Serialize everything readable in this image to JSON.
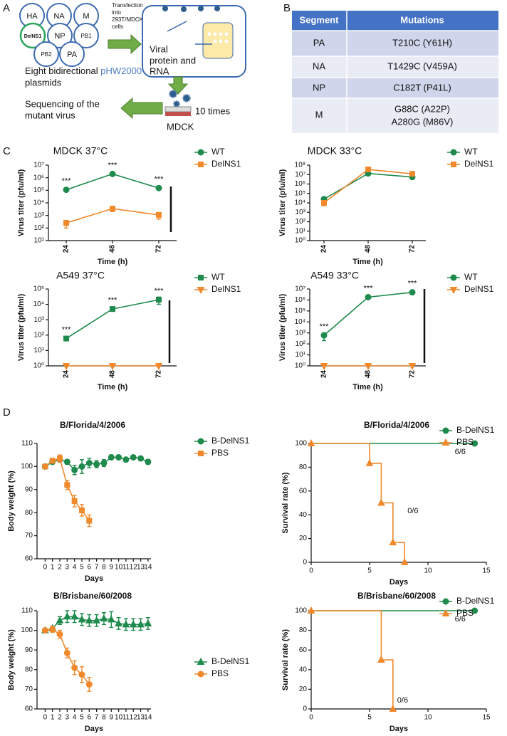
{
  "panel_a": {
    "label": "A",
    "segments": [
      "HA",
      "NA",
      "M",
      "DelNS1",
      "NP",
      "PB1",
      "PB2",
      "PA"
    ],
    "transfection": [
      "Transfection",
      "into",
      "293T/MDCK",
      "cells"
    ],
    "viral_product": [
      "Viral",
      "protein and",
      "RNA"
    ],
    "plasmids": [
      "Eight bidirectional",
      "pHW2000",
      "plasmids"
    ],
    "sequencing": [
      "Sequencing of the",
      "mutant virus"
    ],
    "passage": "10 times",
    "cell": "MDCK"
  },
  "panel_b": {
    "label": "B",
    "header": [
      "Segment",
      "Mutations"
    ],
    "rows": [
      {
        "segment": "PA",
        "mutations": [
          "T210C (Y61H)"
        ]
      },
      {
        "segment": "NA",
        "mutations": [
          "T1429C (V459A)"
        ]
      },
      {
        "segment": "NP",
        "mutations": [
          "C182T (P41L)"
        ]
      },
      {
        "segment": "M",
        "mutations": [
          "G88C (A22P)",
          "A280G  (M86V)"
        ]
      }
    ]
  },
  "panel_c_label": "C",
  "panel_d_label": "D",
  "chart_data": [
    {
      "type": "line",
      "title": "MDCK 37°C",
      "x_label": "Time (h)",
      "y_label": "Virus titer (pfu/ml)",
      "log_scale": true,
      "categories": [
        "24",
        "48",
        "72"
      ],
      "ylim": [
        10,
        10000000
      ],
      "yticks": [
        {
          "value": 10,
          "label": "10¹"
        },
        {
          "value": 100,
          "label": "10²"
        },
        {
          "value": 1000,
          "label": "10³"
        },
        {
          "value": 10000,
          "label": "10⁴"
        },
        {
          "value": 100000,
          "label": "10⁵"
        },
        {
          "value": 1000000,
          "label": "10⁶"
        },
        {
          "value": 10000000,
          "label": "10⁷"
        }
      ],
      "series": [
        {
          "name": "WT",
          "color": "#1e8a4c",
          "marker": "circle",
          "values": [
            110000,
            2000000,
            150000
          ],
          "errors": [
            20000,
            300000,
            30000
          ],
          "annotations": [
            "***",
            "***",
            "***"
          ]
        },
        {
          "name": "DelNS1",
          "color": "#f0892c",
          "marker": "square",
          "values": [
            250,
            3500,
            1100
          ],
          "errors": [
            150,
            1500,
            600
          ]
        }
      ]
    },
    {
      "type": "line",
      "title": "MDCK 33°C",
      "x_label": "Time (h)",
      "y_label": "Virus titer (pfu/ml)",
      "log_scale": true,
      "categories": [
        "24",
        "48",
        "72"
      ],
      "ylim": [
        1,
        100000000
      ],
      "yticks": [
        {
          "value": 1,
          "label": "10⁰"
        },
        {
          "value": 10,
          "label": "10¹"
        },
        {
          "value": 100,
          "label": "10²"
        },
        {
          "value": 1000,
          "label": "10³"
        },
        {
          "value": 10000,
          "label": "10⁴"
        },
        {
          "value": 100000,
          "label": "10⁵"
        },
        {
          "value": 1000000,
          "label": "10⁶"
        },
        {
          "value": 10000000,
          "label": "10⁷"
        },
        {
          "value": 100000000,
          "label": "10⁸"
        }
      ],
      "series": [
        {
          "name": "WT",
          "color": "#1e8a4c",
          "marker": "circle",
          "values": [
            25000,
            13000000,
            5500000
          ]
        },
        {
          "name": "DelNS1",
          "color": "#f0892c",
          "marker": "square",
          "values": [
            10000,
            35000000,
            12000000
          ],
          "errors": [
            5000,
            8000000,
            2000000
          ]
        }
      ]
    },
    {
      "type": "line",
      "title": "A549 37°C",
      "x_label": "Time (h)",
      "y_label": "Virus titer (pfu/ml)",
      "log_scale": true,
      "categories": [
        "24",
        "48",
        "72"
      ],
      "ylim": [
        1,
        100000
      ],
      "yticks": [
        {
          "value": 1,
          "label": "10⁰"
        },
        {
          "value": 10,
          "label": "10¹"
        },
        {
          "value": 100,
          "label": "10²"
        },
        {
          "value": 1000,
          "label": "10³"
        },
        {
          "value": 10000,
          "label": "10⁴"
        },
        {
          "value": 100000,
          "label": "10⁵"
        }
      ],
      "series": [
        {
          "name": "WT",
          "color": "#1e8a4c",
          "marker": "square",
          "values": [
            60,
            5000,
            20000
          ],
          "errors": [
            10,
            1500,
            10000
          ],
          "annotations": [
            "***",
            "***",
            "***"
          ]
        },
        {
          "name": "DelNS1",
          "color": "#f0892c",
          "marker": "triangle-down",
          "values": [
            1,
            1,
            1
          ]
        }
      ]
    },
    {
      "type": "line",
      "title": "A549 33°C",
      "x_label": "Time (h)",
      "y_label": "Virus titer (pfu/ml)",
      "log_scale": true,
      "categories": [
        "24",
        "48",
        "72"
      ],
      "ylim": [
        1,
        10000000
      ],
      "yticks": [
        {
          "value": 1,
          "label": "10⁰"
        },
        {
          "value": 10,
          "label": "10¹"
        },
        {
          "value": 100,
          "label": "10²"
        },
        {
          "value": 1000,
          "label": "10³"
        },
        {
          "value": 10000,
          "label": "10⁴"
        },
        {
          "value": 100000,
          "label": "10⁵"
        },
        {
          "value": 1000000,
          "label": "10⁶"
        },
        {
          "value": 10000000,
          "label": "10⁷"
        }
      ],
      "series": [
        {
          "name": "WT",
          "color": "#1e8a4c",
          "marker": "circle",
          "values": [
            600,
            1800000,
            5000000
          ],
          "errors": [
            400,
            200000,
            400000
          ],
          "annotations": [
            "***",
            "***",
            "***"
          ]
        },
        {
          "name": "DelNS1",
          "color": "#f0892c",
          "marker": "triangle-down",
          "values": [
            1,
            1,
            1
          ]
        }
      ]
    },
    {
      "type": "line",
      "title": "B/Florida/4/2006",
      "x_label": "Days",
      "y_label": "Body weight (%)",
      "x": [
        0,
        1,
        2,
        3,
        4,
        5,
        6,
        7,
        8,
        9,
        10,
        11,
        12,
        13,
        14
      ],
      "xlim": [
        -1.1,
        14.4
      ],
      "xticks": [
        0,
        1,
        2,
        3,
        4,
        5,
        6,
        7,
        8,
        9,
        10,
        11,
        12,
        13,
        14
      ],
      "ylim": [
        60,
        110
      ],
      "yticks": [
        60,
        70,
        80,
        90,
        100,
        110
      ],
      "series": [
        {
          "name": "B-DelNS1",
          "color": "#1e8a4c",
          "marker": "circle",
          "values": [
            100,
            102,
            103,
            102,
            98.5,
            100,
            101.5,
            101,
            101.5,
            104,
            104,
            103,
            104,
            103.5,
            102
          ],
          "errors": [
            0.5,
            0.8,
            1,
            1,
            2,
            3,
            2,
            1.5,
            1.5,
            1,
            0.5,
            0.5,
            0.5,
            0.5,
            1
          ]
        },
        {
          "name": "PBS",
          "color": "#f0892c",
          "marker": "square",
          "values": [
            100,
            102.5,
            103.5,
            92,
            85,
            81,
            76.5,
            null,
            null,
            null,
            null,
            null,
            null,
            null,
            null
          ],
          "errors": [
            0.5,
            1,
            1.5,
            2,
            2.5,
            2.5,
            2.5,
            null,
            null,
            null,
            null,
            null,
            null,
            null,
            null
          ]
        }
      ]
    },
    {
      "type": "step",
      "title": "B/Florida/4/2006",
      "x_label": "Days",
      "y_label": "Survival rate (%)",
      "xlim": [
        0,
        15
      ],
      "xticks": [
        0,
        5,
        10,
        15
      ],
      "ylim": [
        0,
        100
      ],
      "yticks": [
        0,
        20,
        40,
        60,
        80,
        100
      ],
      "series": [
        {
          "name": "B-DelNS1",
          "color": "#1e8a4c",
          "marker": "circle",
          "markers": "last",
          "x": [
            0,
            14
          ],
          "values": [
            100,
            100
          ],
          "end_label": "6/6"
        },
        {
          "name": "PBS",
          "color": "#f0892c",
          "marker": "triangle-up",
          "markers": "all",
          "x": [
            0,
            5,
            6,
            7,
            8
          ],
          "values": [
            100,
            83.3,
            50,
            16.7,
            0
          ],
          "end_label": "0/6"
        }
      ]
    },
    {
      "type": "line",
      "title": "B/Brisbane/60/2008",
      "x_label": "Days",
      "y_label": "Body weight (%)",
      "x": [
        0,
        1,
        2,
        3,
        4,
        5,
        6,
        7,
        8,
        9,
        10,
        11,
        12,
        13,
        14
      ],
      "xlim": [
        -1.1,
        14.4
      ],
      "xticks": [
        0,
        1,
        2,
        3,
        4,
        5,
        6,
        7,
        8,
        9,
        10,
        11,
        12,
        13,
        14
      ],
      "ylim": [
        60,
        110
      ],
      "yticks": [
        60,
        70,
        80,
        90,
        100,
        110
      ],
      "series": [
        {
          "name": "B-DelNS1",
          "color": "#1e8a4c",
          "marker": "triangle-up",
          "values": [
            100,
            101,
            105,
            107,
            107,
            105.5,
            105,
            105,
            106,
            105.5,
            103.5,
            103,
            103,
            103,
            103.5
          ],
          "errors": [
            0.5,
            1,
            2,
            3,
            3,
            3,
            3,
            3,
            3,
            4,
            3,
            3,
            3,
            3,
            3
          ]
        },
        {
          "name": "PBS",
          "color": "#f0892c",
          "marker": "circle",
          "values": [
            100,
            100.5,
            98,
            88.5,
            81,
            77.5,
            72.5,
            null,
            null,
            null,
            null,
            null,
            null,
            null,
            null
          ],
          "errors": [
            0.5,
            1.5,
            2,
            2.5,
            3.5,
            4,
            3.5,
            null,
            null,
            null,
            null,
            null,
            null,
            null,
            null
          ]
        }
      ]
    },
    {
      "type": "step",
      "title": "B/Brisbane/60/2008",
      "x_label": "Days",
      "y_label": "Survival rate (%)",
      "xlim": [
        0,
        15
      ],
      "xticks": [
        0,
        5,
        10,
        15
      ],
      "ylim": [
        0,
        100
      ],
      "yticks": [
        0,
        20,
        40,
        60,
        80,
        100
      ],
      "series": [
        {
          "name": "B-DelNS1",
          "color": "#1e8a4c",
          "marker": "circle",
          "markers": "last",
          "x": [
            0,
            14
          ],
          "values": [
            100,
            100
          ],
          "end_label": "6/6"
        },
        {
          "name": "PBS",
          "color": "#f0892c",
          "marker": "triangle-up",
          "markers": "all",
          "x": [
            0,
            6,
            7
          ],
          "values": [
            100,
            50,
            0
          ],
          "end_label": "0/6"
        }
      ]
    }
  ]
}
